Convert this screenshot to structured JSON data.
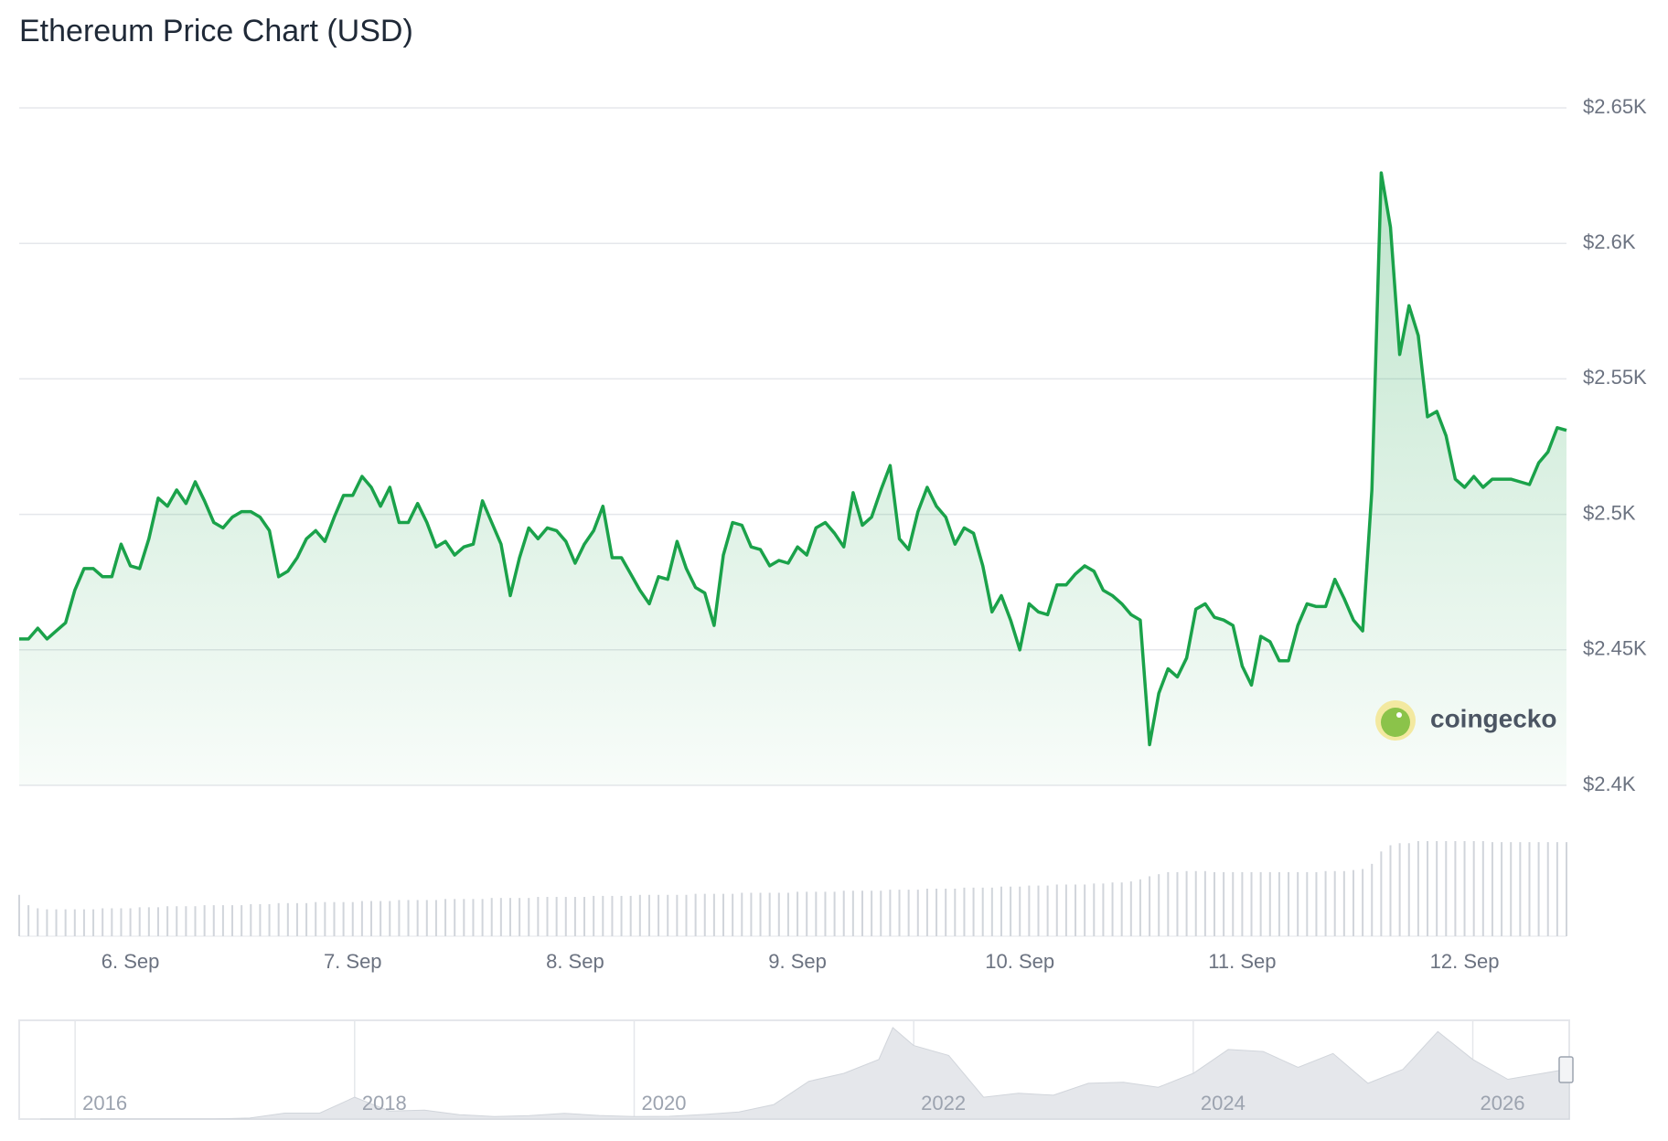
{
  "chart_data": {
    "type": "line",
    "title": "Ethereum Price Chart (USD)",
    "watermark": "coingecko",
    "color": "#1aa24a",
    "categories": [
      null,
      null,
      null,
      null,
      null,
      null,
      null,
      null,
      null,
      null,
      null,
      null,
      "6. Sep",
      null,
      null,
      null,
      null,
      null,
      null,
      null,
      null,
      null,
      null,
      null,
      null,
      null,
      null,
      null,
      null,
      null,
      null,
      null,
      null,
      null,
      null,
      null,
      "7. Sep",
      null,
      null,
      null,
      null,
      null,
      null,
      null,
      null,
      null,
      null,
      null,
      null,
      null,
      null,
      null,
      null,
      null,
      null,
      null,
      null,
      null,
      null,
      null,
      "8. Sep",
      null,
      null,
      null,
      null,
      null,
      null,
      null,
      null,
      null,
      null,
      null,
      null,
      null,
      null,
      null,
      null,
      null,
      null,
      null,
      null,
      null,
      null,
      null,
      "9. Sep",
      null,
      null,
      null,
      null,
      null,
      null,
      null,
      null,
      null,
      null,
      null,
      null,
      null,
      null,
      null,
      null,
      null,
      null,
      null,
      null,
      null,
      null,
      null,
      "10. Sep",
      null,
      null,
      null,
      null,
      null,
      null,
      null,
      null,
      null,
      null,
      null,
      null,
      null,
      null,
      null,
      null,
      null,
      null,
      null,
      null,
      null,
      null,
      null,
      "11. Sep",
      null,
      null,
      null,
      null,
      null,
      null,
      null,
      null,
      null,
      null,
      null,
      null,
      null,
      null,
      null,
      null,
      null,
      null,
      null,
      null,
      null,
      null,
      null,
      "12. Sep",
      null,
      null,
      null,
      null,
      null,
      null,
      null,
      null,
      null,
      null,
      null
    ],
    "values": [
      2454,
      2454,
      2458,
      2454,
      2457,
      2460,
      2472,
      2480,
      2480,
      2477,
      2477,
      2489,
      2481,
      2480,
      2491,
      2506,
      2503,
      2509,
      2504,
      2512,
      2505,
      2497,
      2495,
      2499,
      2501,
      2501,
      2499,
      2494,
      2477,
      2479,
      2484,
      2491,
      2494,
      2490,
      2499,
      2507,
      2507,
      2514,
      2510,
      2503,
      2510,
      2497,
      2497,
      2504,
      2497,
      2488,
      2490,
      2485,
      2488,
      2489,
      2505,
      2497,
      2489,
      2470,
      2484,
      2495,
      2491,
      2495,
      2494,
      2490,
      2482,
      2489,
      2494,
      2503,
      2484,
      2484,
      2478,
      2472,
      2467,
      2477,
      2476,
      2490,
      2480,
      2473,
      2471,
      2459,
      2485,
      2497,
      2496,
      2488,
      2487,
      2481,
      2483,
      2482,
      2488,
      2485,
      2495,
      2497,
      2493,
      2488,
      2508,
      2496,
      2499,
      2509,
      2518,
      2491,
      2487,
      2501,
      2510,
      2503,
      2499,
      2489,
      2495,
      2493,
      2481,
      2464,
      2470,
      2461,
      2450,
      2467,
      2464,
      2463,
      2474,
      2474,
      2478,
      2481,
      2479,
      2472,
      2470,
      2467,
      2463,
      2461,
      2415,
      2434,
      2443,
      2440,
      2447,
      2465,
      2467,
      2462,
      2461,
      2459,
      2444,
      2437,
      2455,
      2453,
      2446,
      2446,
      2459,
      2467,
      2466,
      2466,
      2476,
      2469,
      2461,
      2457,
      2509,
      2626,
      2606,
      2559,
      2577,
      2566,
      2536,
      2538,
      2529,
      2513,
      2510,
      2514,
      2510,
      2513,
      2513,
      2513,
      2512,
      2511,
      2519,
      2523,
      2532,
      2531
    ],
    "ylim": [
      2400,
      2650
    ],
    "yticks": [
      {
        "value": 2400,
        "label": "$2.4K"
      },
      {
        "value": 2450,
        "label": "$2.45K"
      },
      {
        "value": 2500,
        "label": "$2.5K"
      },
      {
        "value": 2550,
        "label": "$2.55K"
      },
      {
        "value": 2600,
        "label": "$2.6K"
      },
      {
        "value": 2650,
        "label": "$2.65K"
      }
    ],
    "grid": true,
    "volume": {
      "color": "#d1d5db",
      "values": [
        40,
        30,
        27,
        26,
        26,
        26,
        26,
        26,
        26,
        27,
        27,
        27,
        27,
        28,
        28,
        28,
        29,
        29,
        29,
        29,
        30,
        30,
        30,
        30,
        30,
        31,
        31,
        31,
        32,
        32,
        32,
        32,
        33,
        33,
        33,
        33,
        33,
        34,
        34,
        34,
        34,
        35,
        35,
        35,
        35,
        35,
        36,
        36,
        36,
        36,
        36,
        37,
        37,
        37,
        37,
        37,
        38,
        38,
        38,
        38,
        38,
        38,
        39,
        39,
        39,
        39,
        39,
        40,
        40,
        40,
        40,
        40,
        40,
        41,
        41,
        41,
        41,
        41,
        42,
        42,
        42,
        42,
        42,
        42,
        43,
        43,
        43,
        43,
        43,
        44,
        44,
        44,
        44,
        44,
        45,
        45,
        45,
        45,
        46,
        46,
        46,
        46,
        47,
        47,
        47,
        47,
        48,
        48,
        48,
        49,
        49,
        49,
        50,
        50,
        50,
        50,
        51,
        51,
        52,
        52,
        53,
        55,
        58,
        60,
        62,
        62,
        63,
        63,
        63,
        62,
        62,
        62,
        62,
        62,
        62,
        62,
        62,
        62,
        62,
        62,
        62,
        63,
        63,
        63,
        64,
        65,
        70,
        82,
        88,
        90,
        90,
        92,
        92,
        92,
        92,
        92,
        92,
        92,
        92,
        91,
        91,
        91,
        91,
        91,
        91,
        91,
        91,
        91
      ]
    },
    "navigator": {
      "type": "area",
      "color": "#e5e7eb",
      "x": [
        2015.75,
        2016,
        2016.25,
        2016.5,
        2016.75,
        2017,
        2017.25,
        2017.5,
        2017.75,
        2018,
        2018.25,
        2018.5,
        2018.75,
        2019,
        2019.25,
        2019.5,
        2019.75,
        2020,
        2020.25,
        2020.5,
        2020.75,
        2021,
        2021.25,
        2021.5,
        2021.75,
        2021.85,
        2022,
        2022.25,
        2022.5,
        2022.75,
        2023,
        2023.25,
        2023.5,
        2023.75,
        2024,
        2024.25,
        2024.5,
        2024.75,
        2025,
        2025.25,
        2025.5,
        2025.75,
        2026,
        2026.25,
        2026.5,
        2026.69
      ],
      "values": [
        1,
        1,
        10,
        12,
        12,
        8,
        50,
        300,
        300,
        1100,
        400,
        450,
        220,
        130,
        170,
        290,
        180,
        130,
        140,
        230,
        360,
        730,
        1900,
        2300,
        3000,
        4600,
        3700,
        3200,
        1100,
        1300,
        1200,
        1800,
        1850,
        1600,
        2300,
        3500,
        3400,
        2600,
        3300,
        1800,
        2500,
        4400,
        3000,
        2000,
        2300,
        2530
      ],
      "xlim": [
        2015.6,
        2026.69
      ],
      "xticks": [
        2016,
        2018,
        2020,
        2022,
        2024,
        2026
      ]
    }
  }
}
